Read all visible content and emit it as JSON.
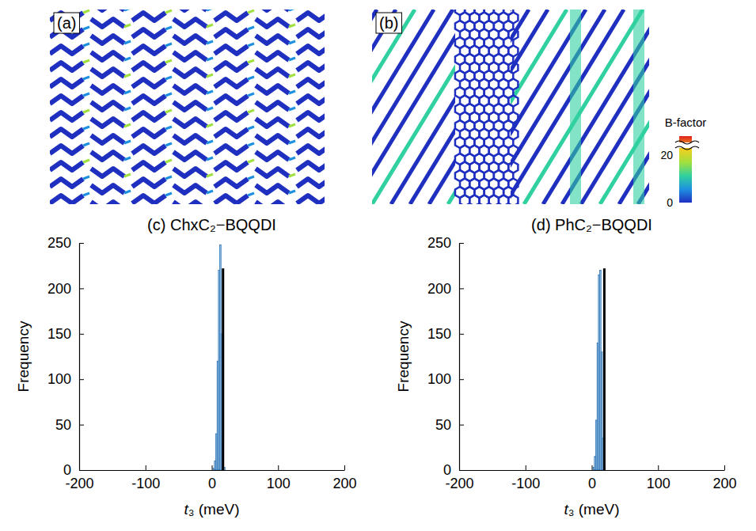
{
  "figure": {
    "panels": [
      {
        "label": "(a)"
      },
      {
        "label": "(b)"
      }
    ],
    "colorbar": {
      "title": "B-factor",
      "lim": [
        0,
        28
      ],
      "ticks": [
        0,
        20
      ],
      "colors": [
        "#1f2fc0",
        "#1e90e0",
        "#30d0a0",
        "#a0e040",
        "#f0d020",
        "#e02020"
      ]
    }
  },
  "chart_data": [
    {
      "type": "histogram",
      "title": "(c) ChxC₂−BQQDI",
      "xlabel": "t₃ (meV)",
      "ylabel": "Frequency",
      "bins": [
        2,
        4,
        6,
        8,
        10,
        12,
        14,
        16,
        18,
        20
      ],
      "counts": [
        2,
        10,
        40,
        120,
        220,
        248,
        150,
        30,
        3
      ],
      "color": "#9dc3e6",
      "reference": {
        "x": 17,
        "value": 222,
        "color": "#000000"
      },
      "xlim": [
        -200,
        200
      ],
      "xticks": [
        -200,
        -100,
        0,
        100,
        200
      ],
      "ylim": [
        0,
        250
      ],
      "yticks": [
        0,
        50,
        100,
        150,
        200,
        250
      ]
    },
    {
      "type": "histogram",
      "title": "(d) PhC₂−BQQDI",
      "xlabel": "t₃ (meV)",
      "ylabel": "Frequency",
      "bins": [
        2,
        4,
        6,
        8,
        10,
        12,
        14,
        16,
        18,
        20
      ],
      "counts": [
        3,
        15,
        55,
        140,
        215,
        220,
        130,
        35,
        5
      ],
      "color": "#9dc3e6",
      "reference": {
        "x": 19,
        "value": 222,
        "color": "#000000"
      },
      "xlim": [
        -200,
        200
      ],
      "xticks": [
        -200,
        -100,
        0,
        100,
        200
      ],
      "ylim": [
        0,
        250
      ],
      "yticks": [
        0,
        50,
        100,
        150,
        200,
        250
      ]
    }
  ]
}
